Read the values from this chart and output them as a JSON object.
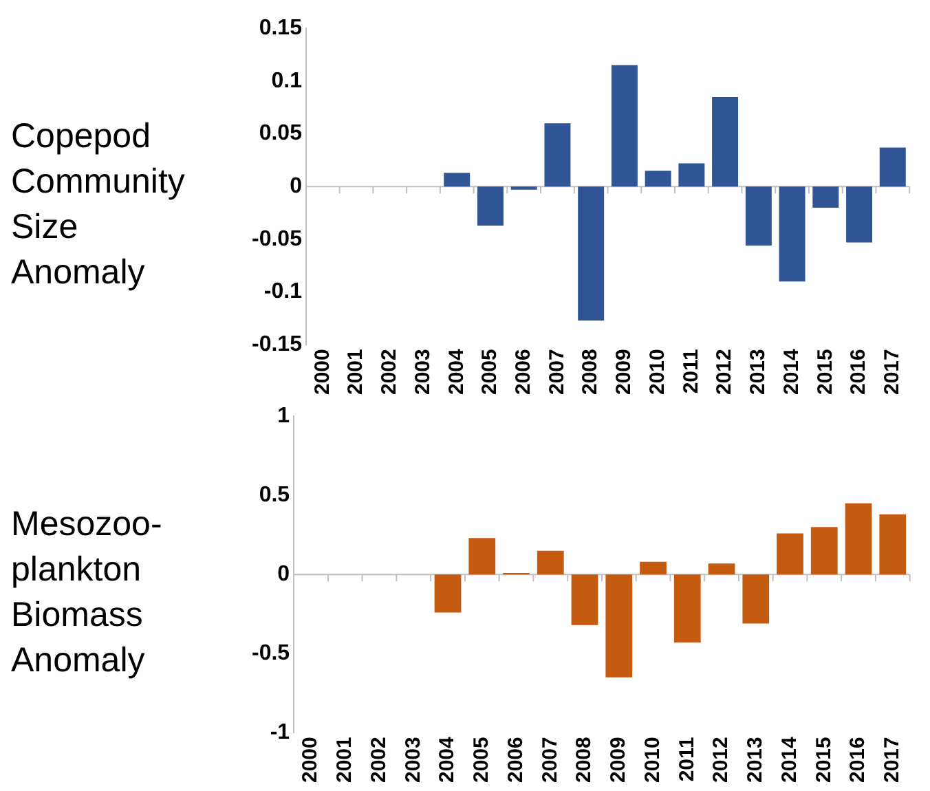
{
  "chart_data": [
    {
      "type": "bar",
      "ylabel": "Copepod Community Size Anomaly",
      "categories": [
        "2000",
        "2001",
        "2002",
        "2003",
        "2004",
        "2005",
        "2006",
        "2007",
        "2008",
        "2009",
        "2010",
        "2011",
        "2012",
        "2013",
        "2014",
        "2015",
        "2016",
        "2017"
      ],
      "values": [
        null,
        null,
        null,
        null,
        0.013,
        -0.037,
        -0.003,
        0.06,
        -0.127,
        0.115,
        0.015,
        0.022,
        0.085,
        -0.056,
        -0.09,
        -0.02,
        -0.053,
        0.037
      ],
      "color": "#2f5597",
      "ylim": [
        -0.15,
        0.15
      ],
      "yticks": [
        -0.15,
        -0.1,
        -0.05,
        0,
        0.05,
        0.1,
        0.15
      ]
    },
    {
      "type": "bar",
      "ylabel": "Mesozoo-plankton Biomass Anomaly",
      "categories": [
        "2000",
        "2001",
        "2002",
        "2003",
        "2004",
        "2005",
        "2006",
        "2007",
        "2008",
        "2009",
        "2010",
        "2011",
        "2012",
        "2013",
        "2014",
        "2015",
        "2016",
        "2017"
      ],
      "values": [
        null,
        null,
        null,
        null,
        -0.24,
        0.23,
        0.01,
        0.15,
        -0.32,
        -0.65,
        0.08,
        -0.43,
        0.07,
        -0.31,
        0.26,
        0.3,
        0.45,
        0.38
      ],
      "color": "#c55a11",
      "ylim": [
        -1,
        1
      ],
      "yticks": [
        -1,
        -0.5,
        0,
        0.5,
        1
      ]
    }
  ]
}
